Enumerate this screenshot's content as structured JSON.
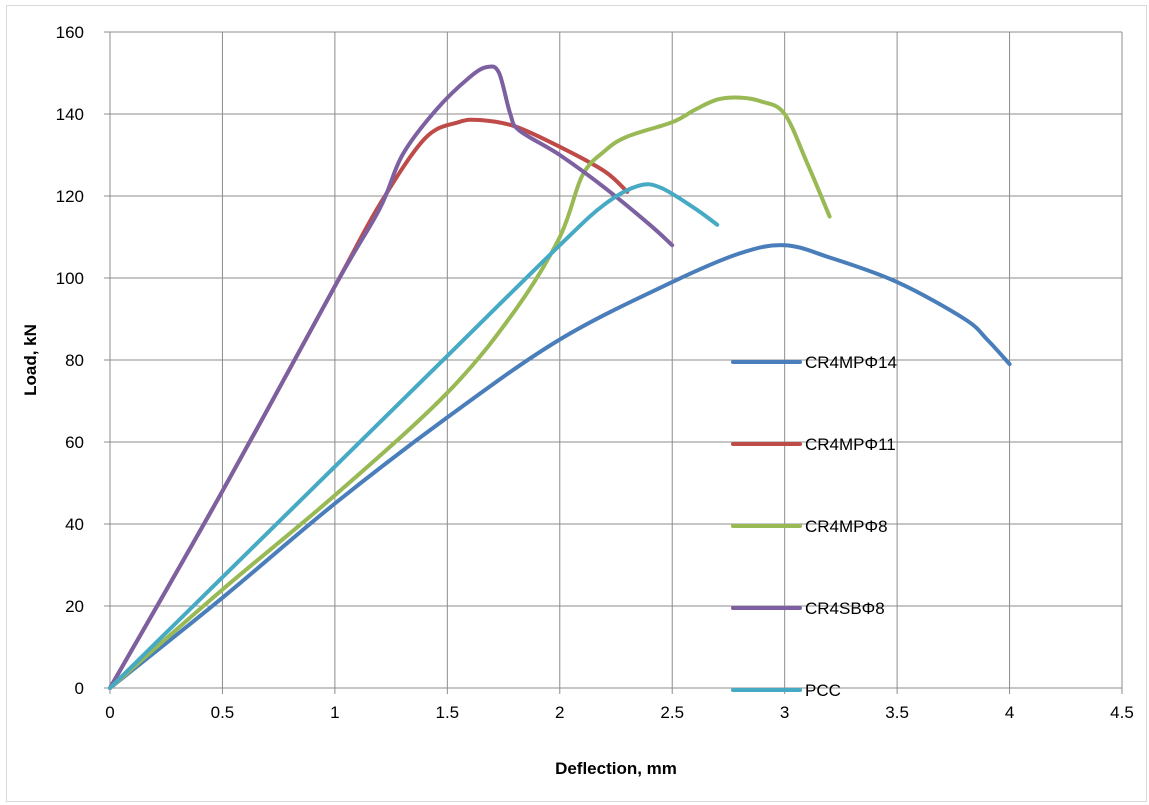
{
  "chart_data": {
    "type": "line",
    "title": "",
    "xlabel": "Deflection, mm",
    "ylabel": "Load, kN",
    "xlim": [
      0,
      4.5
    ],
    "ylim": [
      0,
      160
    ],
    "x_ticks": [
      "0",
      "0.5",
      "1",
      "1.5",
      "2",
      "2.5",
      "3",
      "3.5",
      "4",
      "4.5"
    ],
    "y_ticks": [
      "0",
      "20",
      "40",
      "60",
      "80",
      "100",
      "120",
      "140",
      "160"
    ],
    "grid": true,
    "legend_position": "right",
    "series": [
      {
        "name": "CR4MPΦ14",
        "color": "#4a7ebb",
        "points": [
          [
            0,
            0
          ],
          [
            0.5,
            22
          ],
          [
            1,
            45
          ],
          [
            1.5,
            66
          ],
          [
            2,
            85
          ],
          [
            2.5,
            99
          ],
          [
            2.8,
            106
          ],
          [
            3,
            108
          ],
          [
            3.2,
            105
          ],
          [
            3.5,
            99
          ],
          [
            3.8,
            90
          ],
          [
            3.9,
            85
          ],
          [
            4,
            79
          ]
        ]
      },
      {
        "name": "CR4MPΦ11",
        "color": "#be4b48",
        "points": [
          [
            0,
            0
          ],
          [
            0.5,
            48
          ],
          [
            1,
            98
          ],
          [
            1.2,
            118
          ],
          [
            1.4,
            134
          ],
          [
            1.55,
            138
          ],
          [
            1.65,
            138.5
          ],
          [
            1.8,
            137
          ],
          [
            2,
            132
          ],
          [
            2.2,
            126
          ],
          [
            2.3,
            121
          ]
        ]
      },
      {
        "name": "CR4MPΦ8",
        "color": "#98b954",
        "points": [
          [
            0,
            0
          ],
          [
            0.5,
            24
          ],
          [
            1,
            47
          ],
          [
            1.5,
            72
          ],
          [
            1.8,
            92
          ],
          [
            2,
            110
          ],
          [
            2.1,
            125
          ],
          [
            2.2,
            131
          ],
          [
            2.3,
            134.5
          ],
          [
            2.5,
            138
          ],
          [
            2.6,
            141
          ],
          [
            2.7,
            143.5
          ],
          [
            2.8,
            144
          ],
          [
            2.9,
            143
          ],
          [
            3,
            140
          ],
          [
            3.1,
            128
          ],
          [
            3.2,
            115
          ]
        ]
      },
      {
        "name": "CR4SBΦ8",
        "color": "#7d60a0",
        "points": [
          [
            0,
            0
          ],
          [
            0.5,
            48
          ],
          [
            1,
            98
          ],
          [
            1.2,
            117
          ],
          [
            1.3,
            130
          ],
          [
            1.45,
            141
          ],
          [
            1.6,
            149
          ],
          [
            1.68,
            151.5
          ],
          [
            1.73,
            150
          ],
          [
            1.78,
            140
          ],
          [
            1.82,
            136
          ],
          [
            2,
            130
          ],
          [
            2.2,
            122
          ],
          [
            2.4,
            113
          ],
          [
            2.5,
            108
          ]
        ]
      },
      {
        "name": "PCC",
        "color": "#46aac5",
        "points": [
          [
            0,
            0
          ],
          [
            0.5,
            27
          ],
          [
            1,
            54
          ],
          [
            1.5,
            81
          ],
          [
            2,
            108
          ],
          [
            2.2,
            118
          ],
          [
            2.35,
            122.5
          ],
          [
            2.45,
            122
          ],
          [
            2.6,
            117
          ],
          [
            2.7,
            113
          ]
        ]
      }
    ]
  }
}
